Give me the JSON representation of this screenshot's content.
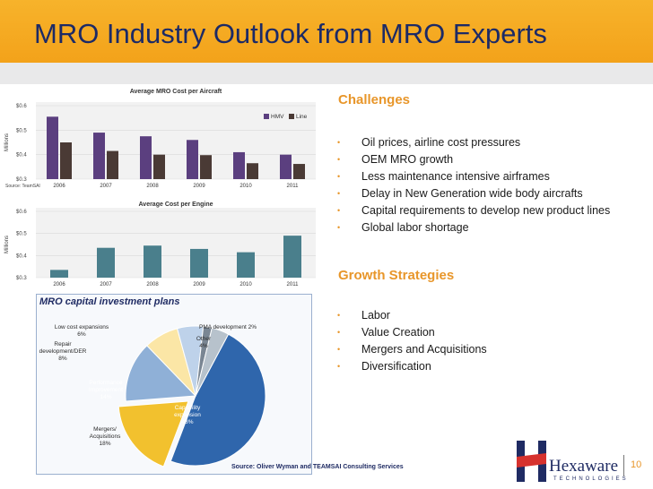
{
  "slide": {
    "title": "MRO Industry Outlook from MRO Experts",
    "page_number": "10",
    "source": "Source: Oliver Wyman and TEAMSAI Consulting Services"
  },
  "colors": {
    "title_bar": "#f5a623",
    "title_text": "#1c2a66",
    "accent": "#e8962a"
  },
  "challenges": {
    "heading": "Challenges",
    "items": [
      "Oil prices, airline cost pressures",
      "OEM MRO growth",
      "Less maintenance intensive airframes",
      "Delay in New Generation wide body aircrafts",
      "Capital requirements to develop new product lines",
      "Global labor shortage"
    ]
  },
  "growth": {
    "heading": "Growth Strategies",
    "items": [
      "Labor",
      "Value Creation",
      "Mergers and Acquisitions",
      "Diversification"
    ]
  },
  "logo": {
    "name": "Hexaware",
    "tagline": "TECHNOLOGIES"
  },
  "chart_data": [
    {
      "type": "bar",
      "title": "Average MRO Cost per Aircraft",
      "ylabel": "Millions",
      "source_note": "Source: TeamSAI",
      "categories": [
        "2006",
        "2007",
        "2008",
        "2009",
        "2010",
        "2011"
      ],
      "yticks": [
        "$0.3",
        "$0.4",
        "$0.5",
        "$0.6"
      ],
      "ylim": [
        0.3,
        0.6
      ],
      "series": [
        {
          "name": "HMV",
          "color": "#5b3f7f",
          "values": [
            0.555,
            0.49,
            0.475,
            0.46,
            0.41,
            0.4
          ]
        },
        {
          "name": "Line",
          "color": "#4a3a35",
          "values": [
            0.45,
            0.415,
            0.4,
            0.398,
            0.365,
            0.362
          ]
        }
      ]
    },
    {
      "type": "bar",
      "title": "Average Cost per Engine",
      "ylabel": "Millions",
      "categories": [
        "2006",
        "2007",
        "2008",
        "2009",
        "2010",
        "2011"
      ],
      "yticks": [
        "$0.3",
        "$0.4",
        "$0.5",
        "$0.6"
      ],
      "ylim": [
        0.3,
        0.6
      ],
      "series": [
        {
          "name": "Engine",
          "color": "#4a7f8c",
          "values": [
            0.335,
            0.435,
            0.445,
            0.43,
            0.415,
            0.49
          ]
        }
      ]
    },
    {
      "type": "pie",
      "title": "MRO capital investment plans",
      "slices": [
        {
          "label": "Capability expansion",
          "value": 48,
          "pct": "48%",
          "color": "#2f66ac"
        },
        {
          "label": "Mergers/ Acquisitions",
          "value": 18,
          "pct": "18%",
          "color": "#f2c12e"
        },
        {
          "label": "Performance Improvement",
          "value": 14,
          "pct": "14%",
          "color": "#8fb0d7"
        },
        {
          "label": "Repair development/DER",
          "value": 8,
          "pct": "8%",
          "color": "#fbe6a6"
        },
        {
          "label": "Low cost expansions",
          "value": 6,
          "pct": "6%",
          "color": "#bed2ea"
        },
        {
          "label": "PMA development",
          "value": 2,
          "pct": "2%",
          "color": "#7a8693"
        },
        {
          "label": "Other",
          "value": 4,
          "pct": "4%",
          "color": "#b7c2cc"
        }
      ]
    }
  ]
}
